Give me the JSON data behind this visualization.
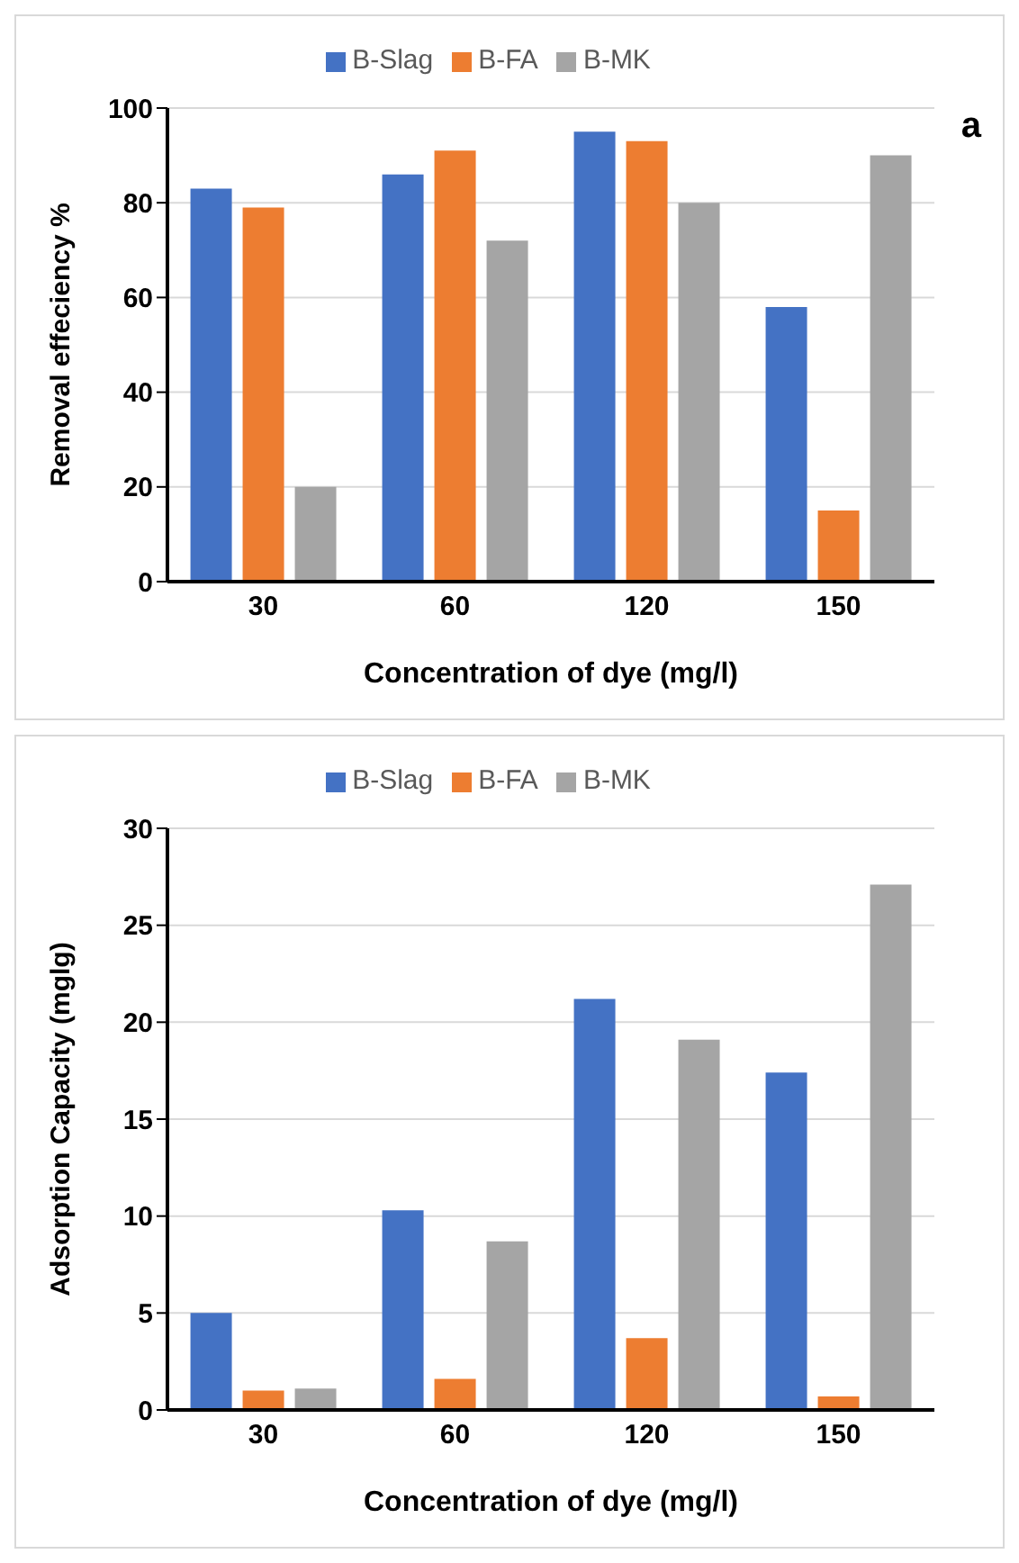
{
  "chart_data": [
    {
      "type": "bar",
      "ylabel": "Removal effeciency %",
      "xlabel": "Concentration of dye (mg/l)",
      "categories": [
        "30",
        "60",
        "120",
        "150"
      ],
      "series": [
        {
          "name": "B-Slag",
          "color": "#4472c4",
          "values": [
            83,
            86,
            95,
            58
          ]
        },
        {
          "name": "B-FA",
          "color": "#ed7d31",
          "values": [
            79,
            91,
            93,
            15
          ]
        },
        {
          "name": "B-MK",
          "color": "#a5a5a5",
          "values": [
            20,
            72,
            80,
            90
          ]
        }
      ],
      "ylim": [
        0,
        100
      ],
      "yticks": [
        0,
        20,
        40,
        60,
        80,
        100
      ],
      "grid": "y",
      "legend": "top",
      "annotations": [
        "a"
      ]
    },
    {
      "type": "bar",
      "ylabel": "Adsorption Capacity (mglg)",
      "xlabel": "Concentration of dye (mg/l)",
      "categories": [
        "30",
        "60",
        "120",
        "150"
      ],
      "series": [
        {
          "name": "B-Slag",
          "color": "#4472c4",
          "values": [
            5,
            10.3,
            21.2,
            17.4
          ]
        },
        {
          "name": "B-FA",
          "color": "#ed7d31",
          "values": [
            1,
            1.6,
            3.7,
            0.7
          ]
        },
        {
          "name": "B-MK",
          "color": "#a5a5a5",
          "values": [
            1.1,
            8.7,
            19.1,
            27.1
          ]
        }
      ],
      "ylim": [
        0,
        30
      ],
      "yticks": [
        0,
        5,
        10,
        15,
        20,
        25,
        30
      ],
      "grid": "y",
      "legend": "top"
    }
  ]
}
